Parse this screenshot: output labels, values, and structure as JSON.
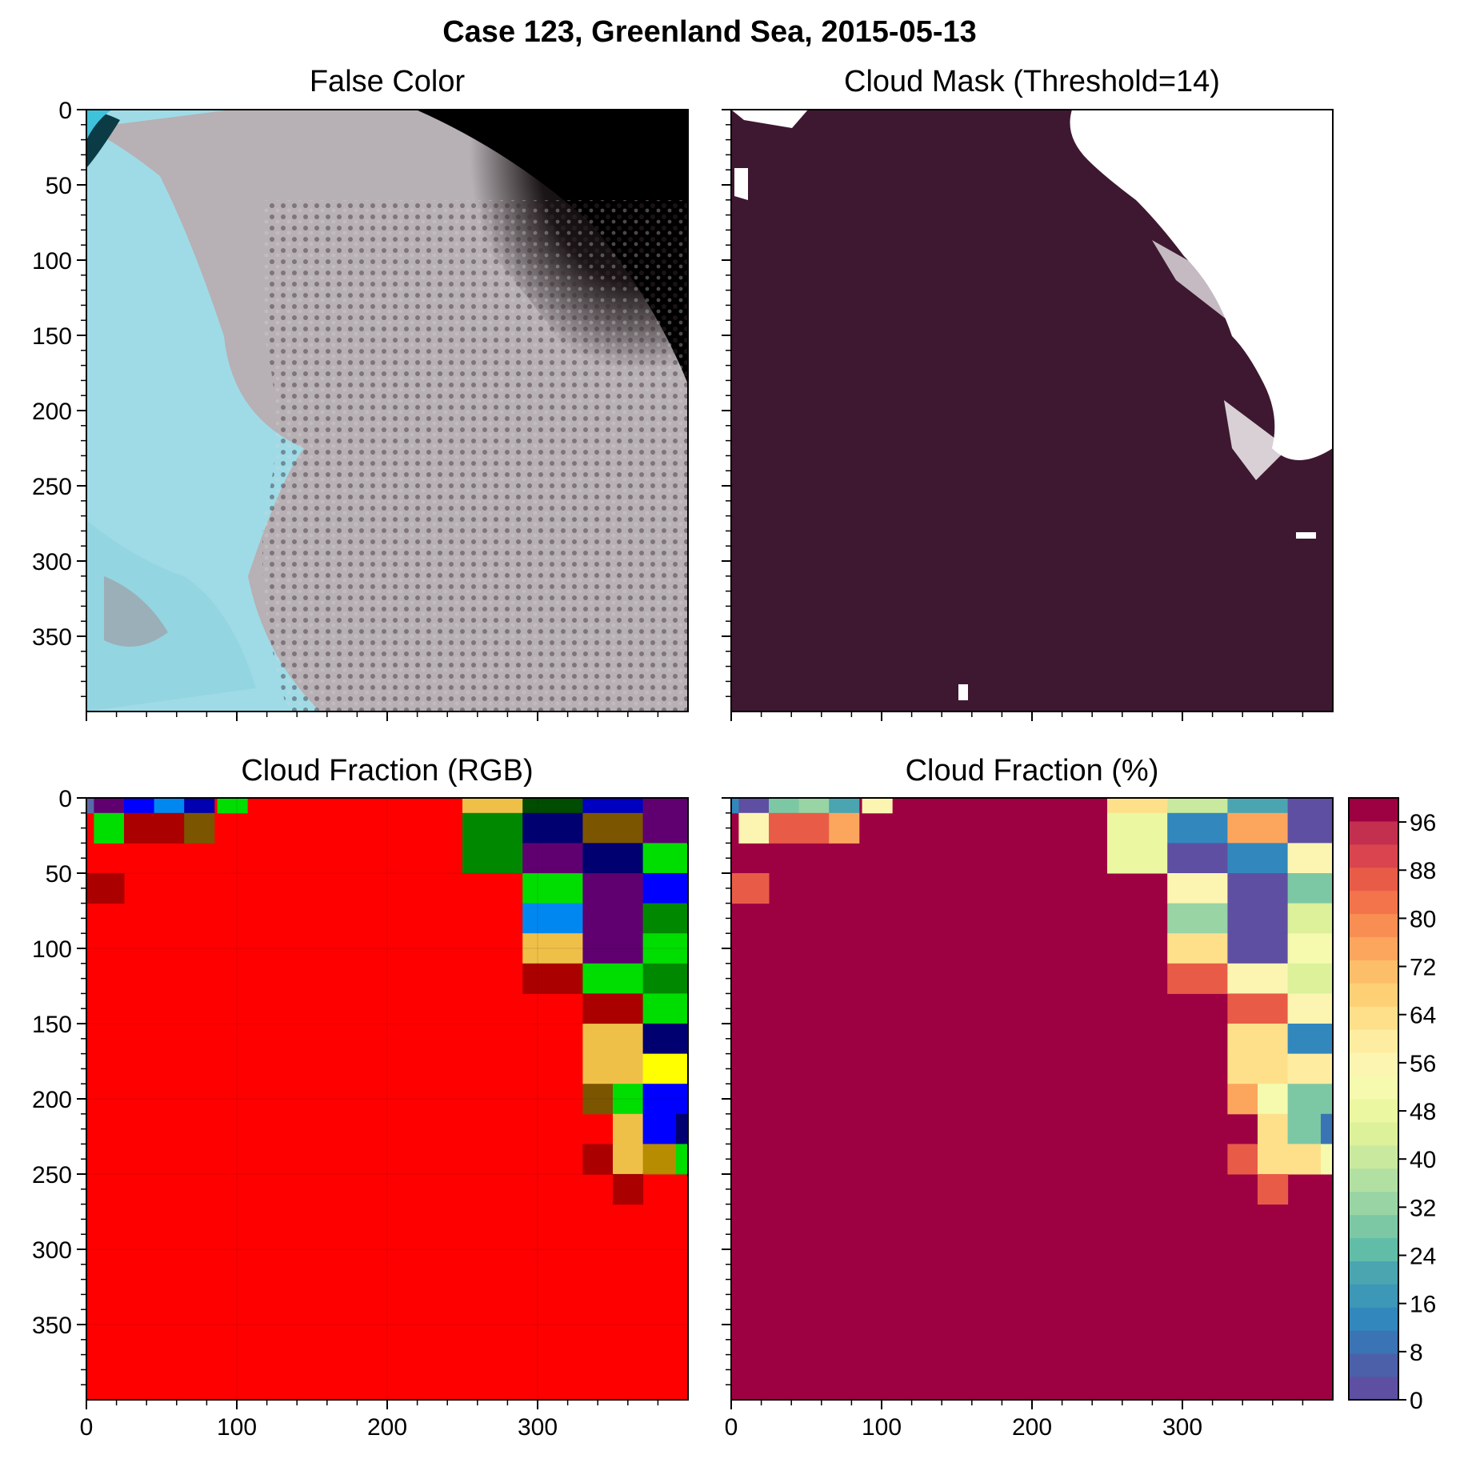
{
  "figure": {
    "suptitle": "Case 123, Greenland Sea, 2015-05-13"
  },
  "panels": [
    {
      "id": "false-color",
      "title": "False Color"
    },
    {
      "id": "cloud-mask",
      "title": "Cloud Mask (Threshold=14)"
    },
    {
      "id": "cloud-fraction-rgb",
      "title": "Cloud Fraction (RGB)"
    },
    {
      "id": "cloud-fraction-pct",
      "title": "Cloud Fraction (%)"
    }
  ],
  "axes": {
    "x_ticks": [
      0,
      100,
      200,
      300
    ],
    "y_ticks": [
      0,
      50,
      100,
      150,
      200,
      250,
      300,
      350
    ],
    "xlim": [
      0,
      400
    ],
    "ylim": [
      400,
      0
    ]
  },
  "colorbar": {
    "ticks": [
      0,
      8,
      16,
      24,
      32,
      40,
      48,
      56,
      64,
      72,
      80,
      88,
      96
    ],
    "range": [
      0,
      100
    ],
    "n_levels": 25,
    "colors": [
      "#5e4fa2",
      "#4c5fa9",
      "#3a74b4",
      "#3288bd",
      "#3d97b7",
      "#4aa5b1",
      "#61bda8",
      "#7dc8a4",
      "#99d4a4",
      "#b2e0a2",
      "#c8e99e",
      "#dcf19a",
      "#ecf7a1",
      "#f5faae",
      "#fcf5b2",
      "#feeda1",
      "#fee08b",
      "#fdd076",
      "#fdbe6a",
      "#fca65d",
      "#f98e52",
      "#f3744b",
      "#e85c47",
      "#d9444e",
      "#c3304f",
      "#9e0142"
    ]
  },
  "chart_data": [
    {
      "type": "heatmap",
      "title": "False Color",
      "description_note": "false color satellite image",
      "xlim": [
        0,
        400
      ],
      "ylim": [
        400,
        0
      ]
    },
    {
      "type": "heatmap",
      "title": "Cloud Mask (Threshold=14)",
      "xlim": [
        0,
        400
      ],
      "ylim": [
        400,
        0
      ],
      "colors": {
        "masked": "#3e1830",
        "clear": "#ffffff"
      }
    },
    {
      "type": "heatmap",
      "title": "Cloud Fraction (RGB)",
      "xlim": [
        0,
        400
      ],
      "ylim": [
        400,
        0
      ],
      "background": "#ff0000",
      "cells": [
        [
          0,
          0,
          5,
          10,
          "#5a6aa8"
        ],
        [
          5,
          0,
          20,
          10,
          "#600070"
        ],
        [
          25,
          0,
          20,
          10,
          "#0000ff"
        ],
        [
          45,
          0,
          20,
          10,
          "#0088f0"
        ],
        [
          65,
          0,
          20,
          10,
          "#0000b0"
        ],
        [
          87,
          0,
          20,
          10,
          "#00dd00"
        ],
        [
          250,
          0,
          40,
          10,
          "#efc048"
        ],
        [
          290,
          0,
          40,
          10,
          "#004c00"
        ],
        [
          330,
          0,
          40,
          10,
          "#0000c0"
        ],
        [
          370,
          0,
          30,
          10,
          "#600070"
        ],
        [
          5,
          10,
          20,
          20,
          "#00dd00"
        ],
        [
          25,
          10,
          40,
          20,
          "#aa0000"
        ],
        [
          65,
          10,
          20,
          20,
          "#7c5500"
        ],
        [
          250,
          10,
          40,
          20,
          "#008800"
        ],
        [
          290,
          10,
          40,
          20,
          "#000070"
        ],
        [
          330,
          10,
          40,
          20,
          "#7c5500"
        ],
        [
          370,
          10,
          30,
          20,
          "#600070"
        ],
        [
          250,
          30,
          40,
          20,
          "#008800"
        ],
        [
          290,
          30,
          40,
          20,
          "#600070"
        ],
        [
          330,
          30,
          40,
          20,
          "#000070"
        ],
        [
          370,
          30,
          30,
          20,
          "#00dd00"
        ],
        [
          0,
          50,
          25,
          20,
          "#aa0000"
        ],
        [
          290,
          50,
          40,
          20,
          "#00dd00"
        ],
        [
          330,
          50,
          40,
          20,
          "#600070"
        ],
        [
          370,
          50,
          30,
          20,
          "#0000ff"
        ],
        [
          290,
          70,
          40,
          20,
          "#0088f0"
        ],
        [
          330,
          70,
          40,
          20,
          "#600070"
        ],
        [
          370,
          70,
          30,
          20,
          "#008800"
        ],
        [
          290,
          90,
          40,
          20,
          "#efc048"
        ],
        [
          330,
          90,
          40,
          20,
          "#600070"
        ],
        [
          370,
          90,
          30,
          20,
          "#00dd00"
        ],
        [
          290,
          110,
          40,
          20,
          "#aa0000"
        ],
        [
          330,
          110,
          40,
          20,
          "#00dd00"
        ],
        [
          370,
          110,
          30,
          20,
          "#008800"
        ],
        [
          330,
          130,
          40,
          20,
          "#aa0000"
        ],
        [
          370,
          130,
          30,
          20,
          "#00dd00"
        ],
        [
          330,
          150,
          40,
          20,
          "#efc048"
        ],
        [
          370,
          150,
          30,
          20,
          "#000070"
        ],
        [
          330,
          170,
          40,
          20,
          "#efc048"
        ],
        [
          370,
          170,
          30,
          20,
          "#ffff00"
        ],
        [
          330,
          190,
          20,
          20,
          "#7c5500"
        ],
        [
          350,
          190,
          20,
          20,
          "#00dd00"
        ],
        [
          370,
          190,
          30,
          20,
          "#0000ff"
        ],
        [
          350,
          210,
          20,
          20,
          "#efc048"
        ],
        [
          370,
          210,
          22,
          20,
          "#0000ff"
        ],
        [
          392,
          210,
          8,
          20,
          "#000070"
        ],
        [
          330,
          230,
          20,
          20,
          "#aa0000"
        ],
        [
          350,
          230,
          20,
          20,
          "#efc048"
        ],
        [
          370,
          230,
          22,
          20,
          "#b88c00"
        ],
        [
          392,
          230,
          8,
          20,
          "#00dd00"
        ],
        [
          350,
          250,
          20,
          20,
          "#aa0000"
        ]
      ]
    },
    {
      "type": "heatmap",
      "title": "Cloud Fraction (%)",
      "xlim": [
        0,
        400
      ],
      "ylim": [
        400,
        0
      ],
      "cmap": "Spectral",
      "background_value": 100,
      "cells": [
        [
          0,
          0,
          5,
          10,
          14
        ],
        [
          5,
          0,
          20,
          10,
          2
        ],
        [
          25,
          0,
          20,
          10,
          28
        ],
        [
          45,
          0,
          20,
          10,
          34
        ],
        [
          65,
          0,
          20,
          10,
          22
        ],
        [
          87,
          0,
          20,
          10,
          56
        ],
        [
          250,
          0,
          40,
          10,
          64
        ],
        [
          290,
          0,
          40,
          10,
          42
        ],
        [
          330,
          0,
          40,
          10,
          22
        ],
        [
          370,
          0,
          30,
          10,
          2
        ],
        [
          5,
          10,
          20,
          20,
          56
        ],
        [
          25,
          10,
          40,
          20,
          90
        ],
        [
          65,
          10,
          20,
          20,
          78
        ],
        [
          250,
          10,
          40,
          20,
          48
        ],
        [
          290,
          10,
          40,
          20,
          14
        ],
        [
          330,
          10,
          40,
          20,
          78
        ],
        [
          370,
          10,
          30,
          20,
          2
        ],
        [
          250,
          30,
          40,
          20,
          48
        ],
        [
          290,
          30,
          40,
          20,
          2
        ],
        [
          330,
          30,
          40,
          20,
          14
        ],
        [
          370,
          30,
          30,
          20,
          56
        ],
        [
          0,
          50,
          25,
          20,
          90
        ],
        [
          290,
          50,
          40,
          20,
          56
        ],
        [
          330,
          50,
          40,
          20,
          2
        ],
        [
          370,
          50,
          30,
          20,
          30
        ],
        [
          290,
          70,
          40,
          20,
          34
        ],
        [
          330,
          70,
          40,
          20,
          2
        ],
        [
          370,
          70,
          30,
          20,
          46
        ],
        [
          290,
          90,
          40,
          20,
          64
        ],
        [
          330,
          90,
          40,
          20,
          2
        ],
        [
          370,
          90,
          30,
          20,
          54
        ],
        [
          290,
          110,
          40,
          20,
          90
        ],
        [
          330,
          110,
          40,
          20,
          56
        ],
        [
          370,
          110,
          30,
          20,
          46
        ],
        [
          330,
          130,
          40,
          20,
          90
        ],
        [
          370,
          130,
          30,
          20,
          56
        ],
        [
          330,
          150,
          40,
          20,
          64
        ],
        [
          370,
          150,
          30,
          20,
          14
        ],
        [
          330,
          170,
          40,
          20,
          64
        ],
        [
          370,
          170,
          30,
          20,
          60
        ],
        [
          330,
          190,
          20,
          20,
          78
        ],
        [
          350,
          190,
          20,
          20,
          54
        ],
        [
          370,
          190,
          30,
          20,
          30
        ],
        [
          350,
          210,
          20,
          20,
          64
        ],
        [
          370,
          210,
          22,
          20,
          30
        ],
        [
          392,
          210,
          8,
          20,
          10
        ],
        [
          330,
          230,
          20,
          20,
          90
        ],
        [
          350,
          230,
          20,
          20,
          64
        ],
        [
          370,
          230,
          22,
          20,
          66
        ],
        [
          392,
          230,
          8,
          20,
          54
        ],
        [
          350,
          250,
          20,
          20,
          90
        ]
      ]
    }
  ]
}
